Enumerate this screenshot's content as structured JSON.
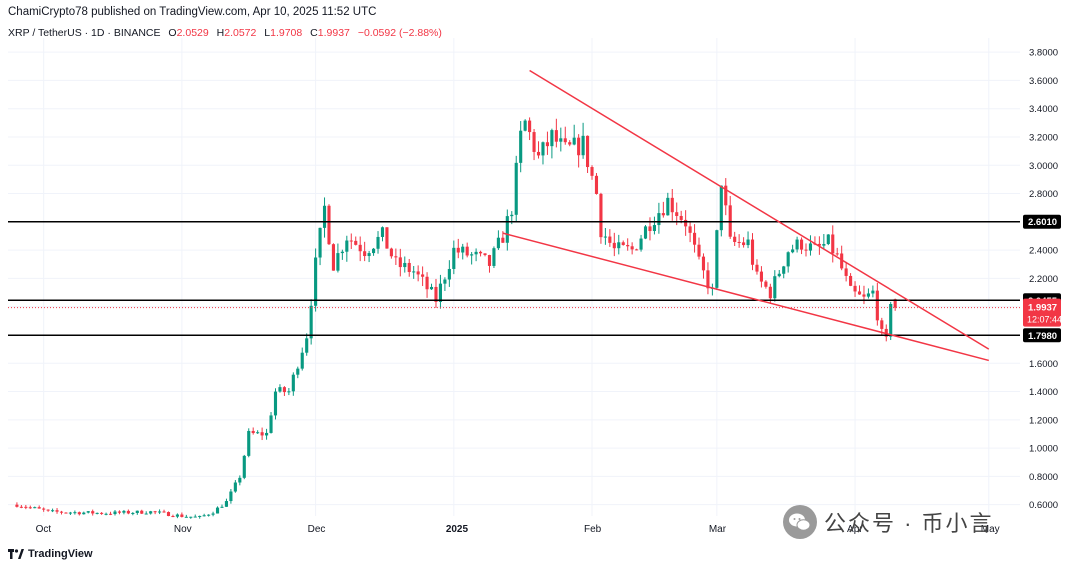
{
  "header": {
    "published": "ChamiCrypto78 published on TradingView.com, Apr 10, 2025 11:52 UTC"
  },
  "symbol_bar": {
    "symbol": "XRP / TetherUS · 1D · BINANCE",
    "open_label": "O",
    "open": "2.0529",
    "high_label": "H",
    "high": "2.0572",
    "low_label": "L",
    "low": "1.9708",
    "close_label": "C",
    "close": "1.9937",
    "change": "−0.0592 (−2.88%)"
  },
  "colors": {
    "up": "#089981",
    "down": "#f23645",
    "trendline": "#f23645",
    "level": "#000000",
    "text": "#131722"
  },
  "price_tag": {
    "price": "1.9937",
    "countdown": "12:07:44"
  },
  "footer": {
    "brand": "TradingView"
  },
  "watermark": {
    "text": "公众号 · 币小言"
  },
  "chart_data": {
    "type": "candlestick",
    "y_axis_ticks": [
      "3.8000",
      "3.6000",
      "3.4000",
      "3.2000",
      "3.0000",
      "2.8000",
      "2.6000",
      "2.4000",
      "2.2000",
      "2.0000",
      "1.8000",
      "1.6000",
      "1.4000",
      "1.2000",
      "1.0000",
      "0.8000",
      "0.6000"
    ],
    "x_axis_labels": [
      "Oct",
      "Nov",
      "Dec",
      "2025",
      "Feb",
      "Mar",
      "Apr",
      "May"
    ],
    "ylim": [
      0.52,
      3.9
    ],
    "levels": [
      {
        "value": 2.601,
        "label": "2.6010"
      },
      {
        "value": 2.0455,
        "label": "2.0455"
      },
      {
        "value": 1.798,
        "label": "1.7980"
      }
    ],
    "trendlines": [
      {
        "name": "upper",
        "from": [
          "2025-01-18",
          3.67
        ],
        "to": [
          "2025-05-01",
          1.7
        ]
      },
      {
        "name": "lower",
        "from": [
          "2025-01-12",
          2.52
        ],
        "to": [
          "2025-05-01",
          1.62
        ]
      }
    ],
    "anchors": [
      [
        "2024-09-25",
        0.6
      ],
      [
        "2024-10-01",
        0.56
      ],
      [
        "2024-10-02",
        0.55
      ],
      [
        "2024-10-15",
        0.54
      ],
      [
        "2024-10-25",
        0.55
      ],
      [
        "2024-11-01",
        0.52
      ],
      [
        "2024-11-05",
        0.51
      ],
      [
        "2024-11-08",
        0.55
      ],
      [
        "2024-11-11",
        0.62
      ],
      [
        "2024-11-14",
        0.8
      ],
      [
        "2024-11-16",
        1.1
      ],
      [
        "2024-11-20",
        1.1
      ],
      [
        "2024-11-22",
        1.4
      ],
      [
        "2024-11-25",
        1.4
      ],
      [
        "2024-11-27",
        1.6
      ],
      [
        "2024-11-29",
        1.8
      ],
      [
        "2024-12-01",
        2.3
      ],
      [
        "2024-12-03",
        2.7
      ],
      [
        "2024-12-05",
        2.3
      ],
      [
        "2024-12-08",
        2.5
      ],
      [
        "2024-12-12",
        2.4
      ],
      [
        "2024-12-16",
        2.5
      ],
      [
        "2024-12-19",
        2.3
      ],
      [
        "2024-12-23",
        2.25
      ],
      [
        "2024-12-28",
        2.05
      ],
      [
        "2025-01-01",
        2.4
      ],
      [
        "2025-01-06",
        2.35
      ],
      [
        "2025-01-09",
        2.3
      ],
      [
        "2025-01-12",
        2.5
      ],
      [
        "2025-01-14",
        2.7
      ],
      [
        "2025-01-16",
        3.2
      ],
      [
        "2025-01-17",
        3.3
      ],
      [
        "2025-01-20",
        3.05
      ],
      [
        "2025-01-23",
        3.2
      ],
      [
        "2025-01-26",
        3.1
      ],
      [
        "2025-01-30",
        3.15
      ],
      [
        "2025-02-02",
        2.8
      ],
      [
        "2025-02-03",
        2.55
      ],
      [
        "2025-02-06",
        2.4
      ],
      [
        "2025-02-10",
        2.4
      ],
      [
        "2025-02-14",
        2.6
      ],
      [
        "2025-02-18",
        2.75
      ],
      [
        "2025-02-22",
        2.6
      ],
      [
        "2025-02-25",
        2.3
      ],
      [
        "2025-02-28",
        2.1
      ],
      [
        "2025-03-02",
        2.9
      ],
      [
        "2025-03-04",
        2.45
      ],
      [
        "2025-03-08",
        2.45
      ],
      [
        "2025-03-10",
        2.2
      ],
      [
        "2025-03-13",
        2.1
      ],
      [
        "2025-03-17",
        2.4
      ],
      [
        "2025-03-20",
        2.45
      ],
      [
        "2025-03-23",
        2.4
      ],
      [
        "2025-03-26",
        2.45
      ],
      [
        "2025-03-28",
        2.35
      ],
      [
        "2025-03-31",
        2.1
      ],
      [
        "2025-04-03",
        2.05
      ],
      [
        "2025-04-05",
        2.1
      ],
      [
        "2025-04-07",
        1.8
      ],
      [
        "2025-04-08",
        1.75
      ],
      [
        "2025-04-09",
        2.05
      ],
      [
        "2025-04-10",
        1.9937
      ]
    ]
  }
}
